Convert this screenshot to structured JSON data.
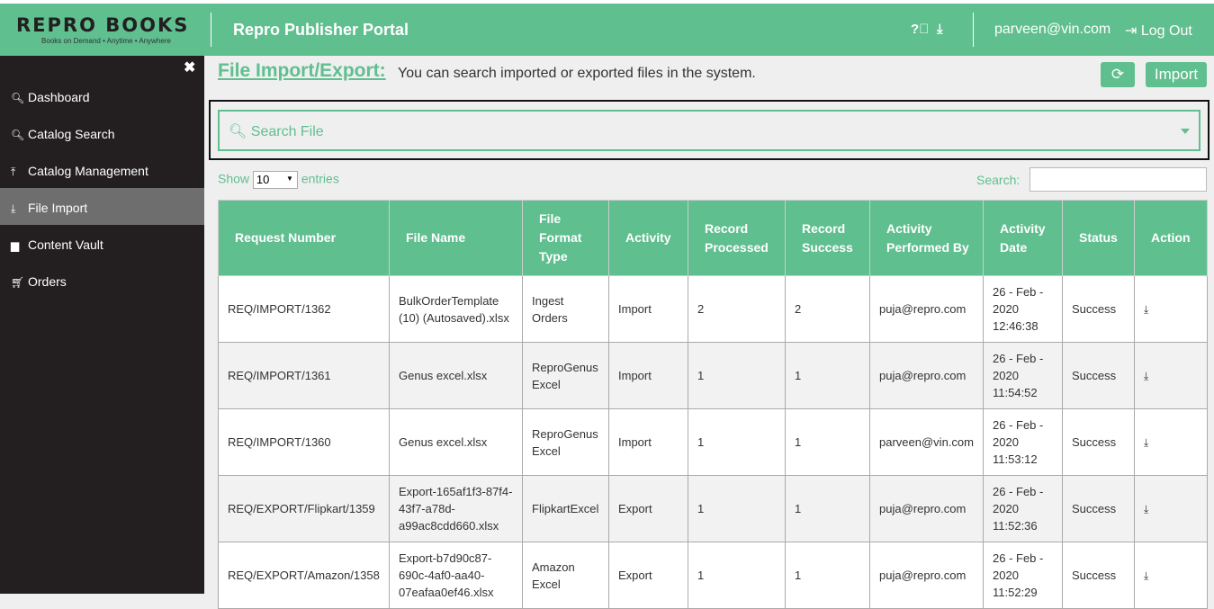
{
  "header": {
    "logo_text": "REPRO BOOKS",
    "logo_tagline": "Books on Demand • Anytime • Anywhere",
    "title": "Repro Publisher Portal",
    "user": "parveen@vin.com",
    "logout": "Log Out"
  },
  "sidebar": {
    "items": [
      {
        "label": "Dashboard",
        "icon": "search-icon"
      },
      {
        "label": "Catalog Search",
        "icon": "search-icon"
      },
      {
        "label": "Catalog Management",
        "icon": "upload-icon"
      },
      {
        "label": "File Import",
        "icon": "download-icon",
        "active": true
      },
      {
        "label": "Content Vault",
        "icon": "folder-icon"
      },
      {
        "label": "Orders",
        "icon": "cart-icon"
      }
    ]
  },
  "page": {
    "title": "File Import/Export:",
    "description": "You can search imported or exported files in the system.",
    "import_label": "Import",
    "search_placeholder": "Search File"
  },
  "table_controls": {
    "show": "Show",
    "entries_value": "10",
    "entries": "entries",
    "search_label": "Search:"
  },
  "table": {
    "headers": [
      "Request Number",
      "File Name",
      "File Format Type",
      "Activity",
      "Record Processed",
      "Record Success",
      "Activity Performed By",
      "Activity Date",
      "Status",
      "Action"
    ],
    "rows": [
      [
        "REQ/IMPORT/1362",
        "BulkOrderTemplate (10) (Autosaved).xlsx",
        "Ingest Orders",
        "Import",
        "2",
        "2",
        "puja@repro.com",
        "26 - Feb - 2020 12:46:38",
        "Success"
      ],
      [
        "REQ/IMPORT/1361",
        "Genus excel.xlsx",
        "ReproGenus Excel",
        "Import",
        "1",
        "1",
        "puja@repro.com",
        "26 - Feb - 2020 11:54:52",
        "Success"
      ],
      [
        "REQ/IMPORT/1360",
        "Genus excel.xlsx",
        "ReproGenus Excel",
        "Import",
        "1",
        "1",
        "parveen@vin.com",
        "26 - Feb - 2020 11:53:12",
        "Success"
      ],
      [
        "REQ/EXPORT/Flipkart/1359",
        "Export-165af1f3-87f4-43f7-a78d-a99ac8cdd660.xlsx",
        "FlipkartExcel",
        "Export",
        "1",
        "1",
        "puja@repro.com",
        "26 - Feb - 2020 11:52:36",
        "Success"
      ],
      [
        "REQ/EXPORT/Amazon/1358",
        "Export-b7d90c87-690c-4af0-aa40-07eafaa0ef46.xlsx",
        "Amazon Excel",
        "Export",
        "1",
        "1",
        "puja@repro.com",
        "26 - Feb - 2020 11:52:29",
        "Success"
      ]
    ]
  }
}
